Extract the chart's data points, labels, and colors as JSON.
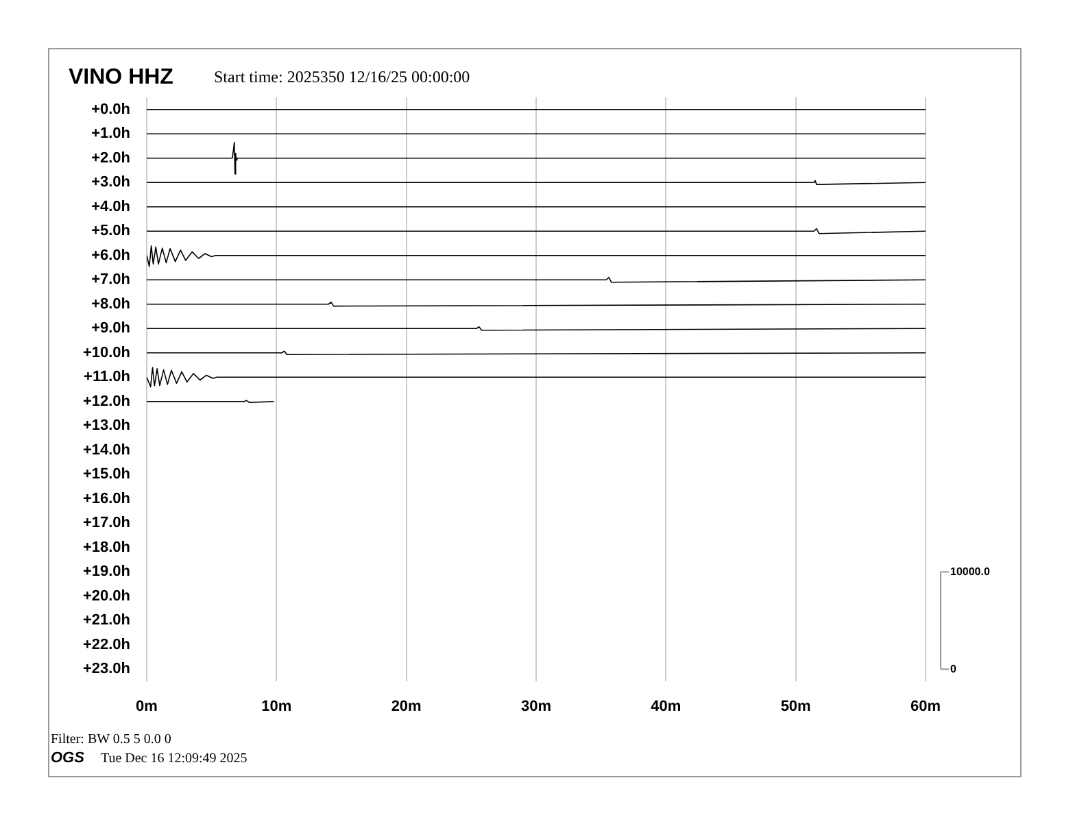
{
  "chart_data": {
    "type": "line",
    "title": "VINO HHZ",
    "subtitle": "Start time: 2025350 12/16/25 00:00:00",
    "annotations": [
      "Filter: BW 0.5 5 0.0 0",
      "OGS",
      "Tue Dec 16 12:09:49 2025"
    ],
    "xlim": [
      0,
      60
    ],
    "xticks": [
      {
        "value": 0,
        "label": "0m"
      },
      {
        "value": 10,
        "label": "10m"
      },
      {
        "value": 20,
        "label": "20m"
      },
      {
        "value": 30,
        "label": "30m"
      },
      {
        "value": 40,
        "label": "40m"
      },
      {
        "value": 50,
        "label": "50m"
      },
      {
        "value": 60,
        "label": "60m"
      }
    ],
    "ylim": [
      23.5,
      -0.5
    ],
    "yticks": [
      {
        "value": 0,
        "label": "+0.0h"
      },
      {
        "value": 1,
        "label": "+1.0h"
      },
      {
        "value": 2,
        "label": "+2.0h"
      },
      {
        "value": 3,
        "label": "+3.0h"
      },
      {
        "value": 4,
        "label": "+4.0h"
      },
      {
        "value": 5,
        "label": "+5.0h"
      },
      {
        "value": 6,
        "label": "+6.0h"
      },
      {
        "value": 7,
        "label": "+7.0h"
      },
      {
        "value": 8,
        "label": "+8.0h"
      },
      {
        "value": 9,
        "label": "+9.0h"
      },
      {
        "value": 10,
        "label": "+10.0h"
      },
      {
        "value": 11,
        "label": "+11.0h"
      },
      {
        "value": 12,
        "label": "+12.0h"
      },
      {
        "value": 13,
        "label": "+13.0h"
      },
      {
        "value": 14,
        "label": "+14.0h"
      },
      {
        "value": 15,
        "label": "+15.0h"
      },
      {
        "value": 16,
        "label": "+16.0h"
      },
      {
        "value": 17,
        "label": "+17.0h"
      },
      {
        "value": 18,
        "label": "+18.0h"
      },
      {
        "value": 19,
        "label": "+19.0h"
      },
      {
        "value": 20,
        "label": "+20.0h"
      },
      {
        "value": 21,
        "label": "+21.0h"
      },
      {
        "value": 22,
        "label": "+22.0h"
      },
      {
        "value": 23,
        "label": "+23.0h"
      }
    ],
    "y2lim": [
      -1250,
      58750
    ],
    "y2ticks": [
      {
        "value": 0,
        "label": "0"
      },
      {
        "value": 10000,
        "label": "10000.0"
      }
    ],
    "grid": "x",
    "marker": "none",
    "line_style": "solid",
    "series": [
      {
        "color": "#000000",
        "x": [
          0,
          15,
          30,
          45,
          60
        ],
        "values": [
          0,
          0,
          0,
          0,
          0
        ]
      },
      {
        "color": "#000000",
        "x": [
          0,
          15,
          30,
          45,
          60
        ],
        "values": [
          1,
          1,
          1,
          1,
          1
        ]
      },
      {
        "color": "#000000",
        "x": [
          0,
          6.6,
          6.75,
          6.8,
          6.85,
          6.9,
          7.0,
          60
        ],
        "values": [
          2,
          2,
          1.35,
          2.65,
          1.8,
          2.1,
          2,
          2
        ]
      },
      {
        "color": "#000000",
        "x": [
          0,
          51.4,
          51.5,
          51.6,
          60
        ],
        "values": [
          3,
          3,
          2.92,
          3.08,
          3
        ]
      },
      {
        "color": "#000000",
        "x": [
          0,
          15,
          30,
          45,
          60
        ],
        "values": [
          4,
          4,
          4,
          4,
          4
        ]
      },
      {
        "color": "#000000",
        "x": [
          0,
          51.4,
          51.6,
          51.8,
          60
        ],
        "values": [
          5,
          5,
          4.9,
          5.1,
          5
        ]
      },
      {
        "color": "#000000",
        "x": [
          0,
          0.2,
          0.35,
          0.5,
          0.7,
          0.9,
          1.2,
          1.5,
          1.8,
          2.2,
          2.6,
          3.0,
          3.5,
          4.0,
          4.5,
          5.0,
          5.3,
          60
        ],
        "values": [
          6,
          6.45,
          5.6,
          6.35,
          5.65,
          6.35,
          5.7,
          6.3,
          5.72,
          6.25,
          5.78,
          6.2,
          5.85,
          6.12,
          5.92,
          6.05,
          6,
          6
        ]
      },
      {
        "color": "#000000",
        "x": [
          0,
          35.4,
          35.6,
          35.8,
          60
        ],
        "values": [
          7,
          7,
          6.9,
          7.1,
          7
        ]
      },
      {
        "color": "#000000",
        "x": [
          0,
          14.0,
          14.2,
          14.4,
          60
        ],
        "values": [
          8,
          8,
          7.92,
          8.08,
          8
        ]
      },
      {
        "color": "#000000",
        "x": [
          0,
          25.4,
          25.6,
          25.8,
          60
        ],
        "values": [
          9,
          9,
          8.93,
          9.07,
          9
        ]
      },
      {
        "color": "#000000",
        "x": [
          0,
          10.4,
          10.6,
          10.8,
          60
        ],
        "values": [
          10,
          10,
          9.93,
          10.07,
          10
        ]
      },
      {
        "color": "#000000",
        "x": [
          0,
          0.3,
          0.45,
          0.6,
          0.8,
          1.0,
          1.3,
          1.6,
          1.9,
          2.3,
          2.7,
          3.1,
          3.6,
          4.1,
          4.6,
          5.1,
          5.4,
          60
        ],
        "values": [
          11,
          11.4,
          10.6,
          11.35,
          10.65,
          11.35,
          10.7,
          11.3,
          10.72,
          11.25,
          10.78,
          11.2,
          10.85,
          11.12,
          10.92,
          11.05,
          11,
          11
        ]
      },
      {
        "color": "#000000",
        "x": [
          0,
          7.5,
          7.7,
          7.9,
          9.8
        ],
        "values": [
          12,
          12,
          11.96,
          12.04,
          12
        ]
      }
    ]
  }
}
